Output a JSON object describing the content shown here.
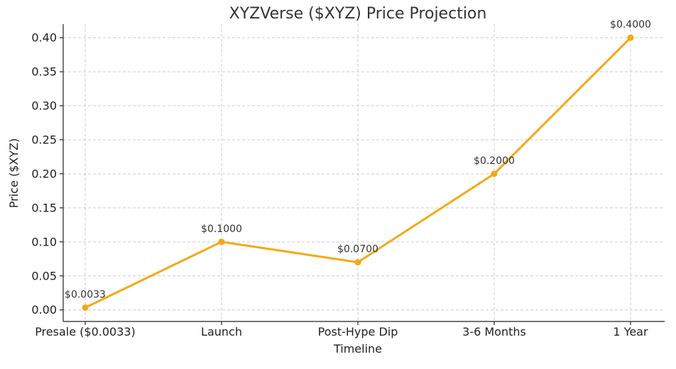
{
  "chart_data": {
    "type": "line",
    "title": "XYZVerse ($XYZ) Price Projection",
    "xlabel": "Timeline",
    "ylabel": "Price ($XYZ)",
    "categories": [
      "Presale ($0.0033)",
      "Launch",
      "Post-Hype Dip",
      "3-6 Months",
      "1 Year"
    ],
    "series": [
      {
        "values": [
          0.0033,
          0.1,
          0.07,
          0.2,
          0.4
        ],
        "labels": [
          "$0.0033",
          "$0.1000",
          "$0.0700",
          "$0.2000",
          "$0.4000"
        ],
        "color": "#f5a913"
      }
    ],
    "ylim": [
      -0.017,
      0.42
    ],
    "yticks": [
      "0.00",
      "0.05",
      "0.10",
      "0.15",
      "0.20",
      "0.25",
      "0.30",
      "0.35",
      "0.40"
    ],
    "grid": true
  }
}
